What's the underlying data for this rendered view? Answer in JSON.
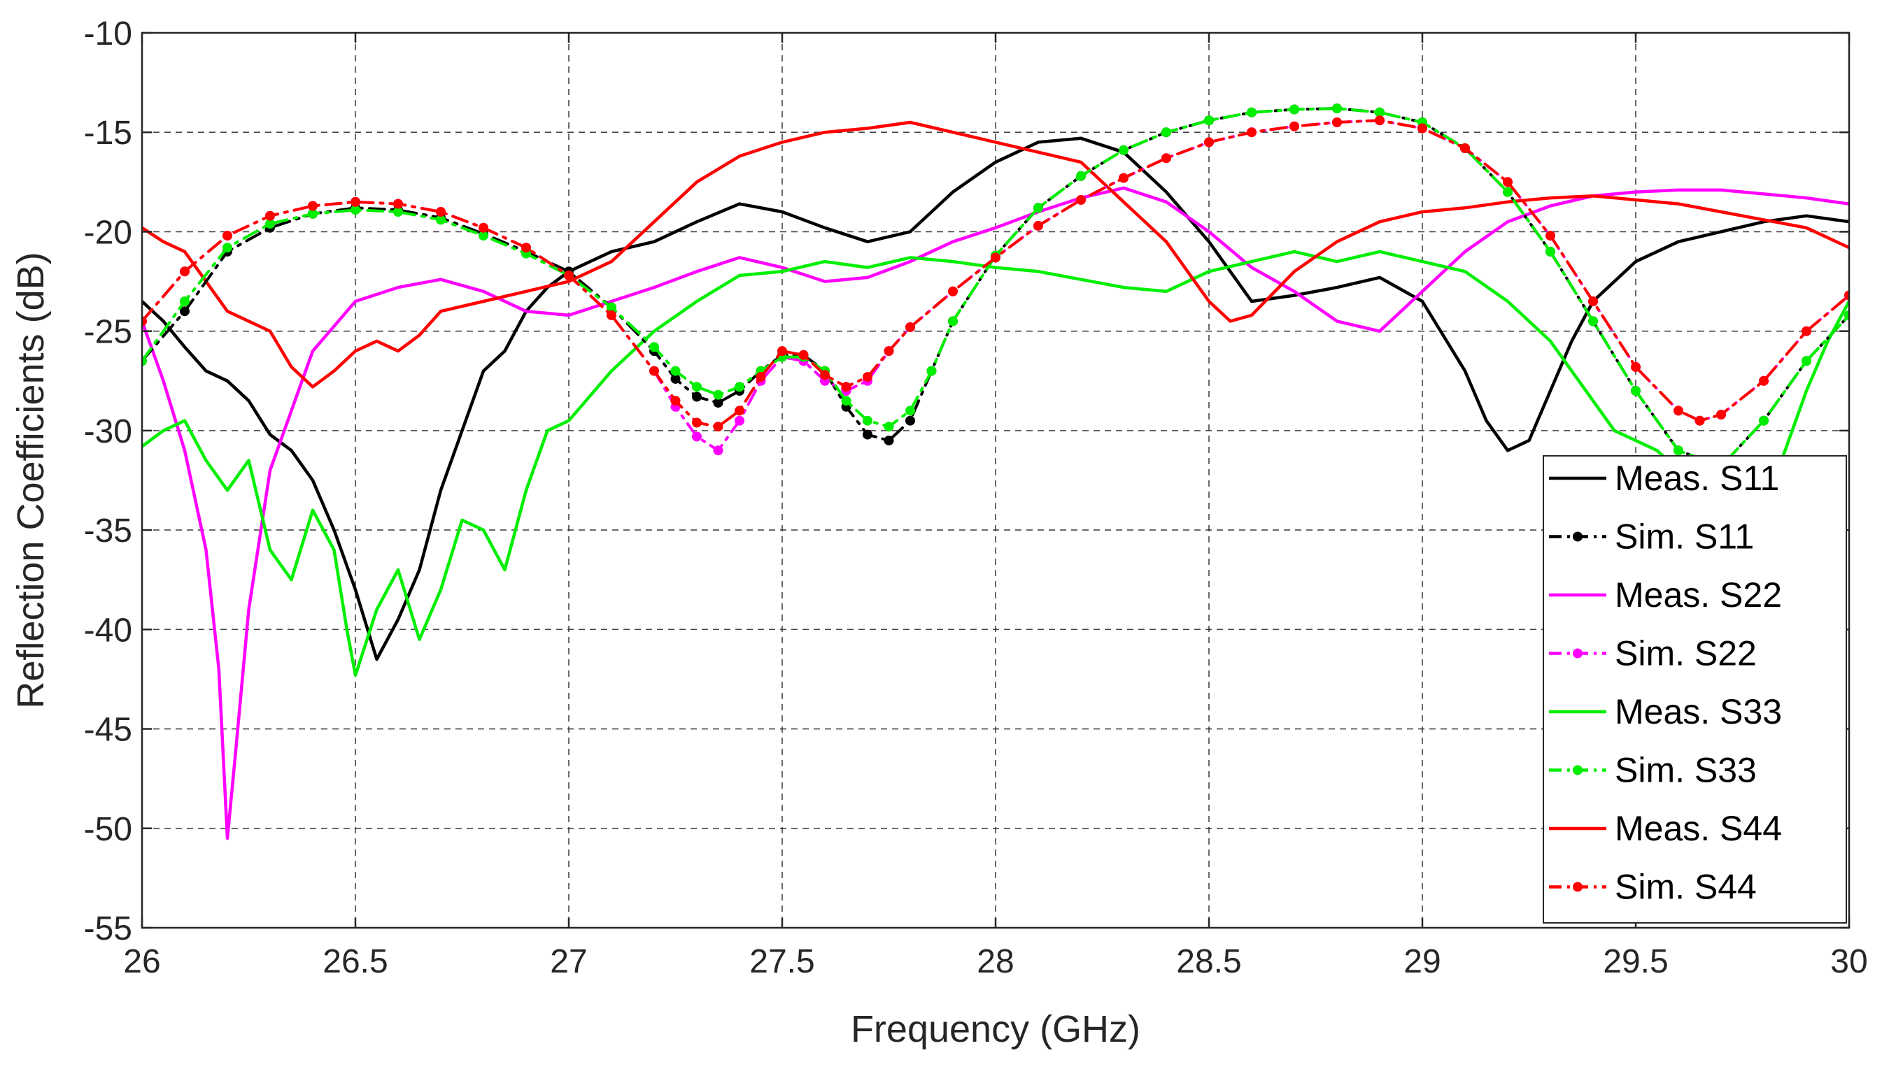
{
  "chart_data": {
    "type": "line",
    "title": "",
    "xlabel": "Frequency (GHz)",
    "ylabel": "Reflection Coefficients (dB)",
    "xlim": [
      26,
      30
    ],
    "ylim": [
      -55,
      -10
    ],
    "xticks": [
      26,
      26.5,
      27,
      27.5,
      28,
      28.5,
      29,
      29.5,
      30
    ],
    "xtick_labels": [
      "26",
      "26.5",
      "27",
      "27.5",
      "28",
      "28.5",
      "29",
      "29.5",
      "30"
    ],
    "yticks": [
      -55,
      -50,
      -45,
      -40,
      -35,
      -30,
      -25,
      -20,
      -15,
      -10
    ],
    "ytick_labels": [
      "-55",
      "-50",
      "-45",
      "-40",
      "-35",
      "-30",
      "-25",
      "-20",
      "-15",
      "-10"
    ],
    "grid": true,
    "legend_position": "bottom-right",
    "series": [
      {
        "name": "Meas. S11",
        "color": "#000000",
        "style": "solid",
        "markers": false,
        "x": [
          26,
          26.05,
          26.1,
          26.15,
          26.2,
          26.25,
          26.3,
          26.35,
          26.4,
          26.45,
          26.5,
          26.55,
          26.6,
          26.65,
          26.7,
          26.75,
          26.8,
          26.85,
          26.9,
          26.95,
          27,
          27.1,
          27.2,
          27.3,
          27.4,
          27.5,
          27.6,
          27.7,
          27.8,
          27.9,
          28,
          28.1,
          28.2,
          28.3,
          28.4,
          28.5,
          28.6,
          28.7,
          28.8,
          28.9,
          29,
          29.1,
          29.15,
          29.2,
          29.25,
          29.3,
          29.35,
          29.4,
          29.5,
          29.6,
          29.7,
          29.8,
          29.9,
          30
        ],
        "y": [
          -23.5,
          -24.5,
          -25.8,
          -27,
          -27.5,
          -28.5,
          -30.2,
          -31,
          -32.5,
          -35,
          -38,
          -41.5,
          -39.5,
          -37,
          -33,
          -30,
          -27,
          -26,
          -24,
          -22.8,
          -22,
          -21,
          -20.5,
          -19.5,
          -18.6,
          -19,
          -19.8,
          -20.5,
          -20,
          -18,
          -16.5,
          -15.5,
          -15.3,
          -16,
          -18,
          -20.5,
          -23.5,
          -23.2,
          -22.8,
          -22.3,
          -23.5,
          -27,
          -29.5,
          -31,
          -30.5,
          -28,
          -25.5,
          -23.5,
          -21.5,
          -20.5,
          -20,
          -19.5,
          -19.2,
          -19.5
        ]
      },
      {
        "name": "Sim. S11",
        "color": "#000000",
        "style": "dash-dot",
        "markers": true,
        "x": [
          26,
          26.1,
          26.2,
          26.3,
          26.4,
          26.5,
          26.6,
          26.7,
          26.8,
          26.9,
          27,
          27.1,
          27.2,
          27.25,
          27.3,
          27.35,
          27.4,
          27.45,
          27.5,
          27.55,
          27.6,
          27.65,
          27.7,
          27.75,
          27.8,
          27.85,
          27.9,
          28,
          28.1,
          28.2,
          28.3,
          28.4,
          28.5,
          28.6,
          28.7,
          28.8,
          28.9,
          29,
          29.1,
          29.2,
          29.3,
          29.4,
          29.5,
          29.6,
          29.7,
          29.8,
          29.9,
          30
        ],
        "y": [
          -26.5,
          -24,
          -21,
          -19.8,
          -19.1,
          -18.8,
          -18.9,
          -19.3,
          -20.1,
          -21,
          -22,
          -23.8,
          -26,
          -27.4,
          -28.3,
          -28.6,
          -28,
          -27,
          -26.2,
          -26.2,
          -27,
          -28.8,
          -30.2,
          -30.5,
          -29.5,
          -27,
          -24.5,
          -21.2,
          -18.8,
          -17.2,
          -15.9,
          -15,
          -14.4,
          -14,
          -13.85,
          -13.8,
          -14,
          -14.5,
          -15.8,
          -18,
          -21,
          -24.5,
          -28,
          -31,
          -31.8,
          -29.5,
          -26.5,
          -24.2
        ]
      },
      {
        "name": "Meas. S22",
        "color": "#ff00ff",
        "style": "solid",
        "markers": false,
        "x": [
          26,
          26.05,
          26.1,
          26.15,
          26.18,
          26.2,
          26.22,
          26.25,
          26.3,
          26.35,
          26.4,
          26.5,
          26.6,
          26.7,
          26.8,
          26.9,
          27,
          27.1,
          27.2,
          27.3,
          27.4,
          27.5,
          27.6,
          27.7,
          27.8,
          27.9,
          28,
          28.1,
          28.2,
          28.3,
          28.4,
          28.5,
          28.6,
          28.7,
          28.8,
          28.9,
          29,
          29.1,
          29.2,
          29.3,
          29.4,
          29.5,
          29.6,
          29.7,
          29.8,
          29.9,
          30
        ],
        "y": [
          -24.5,
          -27.5,
          -31,
          -36,
          -42,
          -50.5,
          -46,
          -39,
          -32,
          -29,
          -26,
          -23.5,
          -22.8,
          -22.4,
          -23,
          -24,
          -24.2,
          -23.5,
          -22.8,
          -22,
          -21.3,
          -21.8,
          -22.5,
          -22.3,
          -21.5,
          -20.5,
          -19.8,
          -19,
          -18.3,
          -17.8,
          -18.5,
          -20,
          -21.8,
          -23,
          -24.5,
          -25,
          -23,
          -21,
          -19.5,
          -18.7,
          -18.2,
          -18,
          -17.9,
          -17.9,
          -18.1,
          -18.3,
          -18.6
        ]
      },
      {
        "name": "Sim. S22",
        "color": "#ff00ff",
        "style": "dash-dot",
        "markers": true,
        "x": [
          26,
          26.1,
          26.2,
          26.3,
          26.4,
          26.5,
          26.6,
          26.7,
          26.8,
          26.9,
          27,
          27.1,
          27.2,
          27.25,
          27.3,
          27.35,
          27.4,
          27.45,
          27.5,
          27.55,
          27.6,
          27.65,
          27.7,
          27.75,
          27.8,
          27.9,
          28,
          28.1,
          28.2,
          28.3,
          28.4,
          28.5,
          28.6,
          28.7,
          28.8,
          28.9,
          29,
          29.1,
          29.2,
          29.3,
          29.4,
          29.5,
          29.6,
          29.65,
          29.7,
          29.8,
          29.9,
          30
        ],
        "y": [
          -24.5,
          -22,
          -20.2,
          -19.2,
          -18.7,
          -18.5,
          -18.6,
          -19,
          -19.8,
          -20.8,
          -22.2,
          -24.2,
          -27,
          -28.8,
          -30.3,
          -31,
          -29.5,
          -27.5,
          -26.3,
          -26.5,
          -27.5,
          -28,
          -27.5,
          -26,
          -24.8,
          -23,
          -21.3,
          -19.7,
          -18.4,
          -17.3,
          -16.3,
          -15.5,
          -15,
          -14.7,
          -14.5,
          -14.4,
          -14.8,
          -15.8,
          -17.5,
          -20.2,
          -23.5,
          -26.8,
          -29,
          -29.5,
          -29.2,
          -27.5,
          -25,
          -23.2
        ]
      },
      {
        "name": "Meas. S33",
        "color": "#00ee00",
        "style": "solid",
        "markers": false,
        "x": [
          26,
          26.05,
          26.1,
          26.15,
          26.2,
          26.25,
          26.3,
          26.35,
          26.4,
          26.45,
          26.48,
          26.5,
          26.55,
          26.6,
          26.65,
          26.7,
          26.75,
          26.8,
          26.85,
          26.9,
          26.95,
          27,
          27.1,
          27.2,
          27.3,
          27.4,
          27.5,
          27.6,
          27.7,
          27.8,
          27.9,
          28,
          28.1,
          28.2,
          28.3,
          28.4,
          28.5,
          28.6,
          28.7,
          28.8,
          28.9,
          29,
          29.1,
          29.2,
          29.3,
          29.35,
          29.4,
          29.45,
          29.5,
          29.55,
          29.6,
          29.65,
          29.7,
          29.75,
          29.8,
          29.85,
          29.9,
          29.95,
          30
        ],
        "y": [
          -30.8,
          -30,
          -29.5,
          -31.5,
          -33,
          -31.5,
          -36,
          -37.5,
          -34,
          -36,
          -40,
          -42.3,
          -39,
          -37,
          -40.5,
          -38,
          -34.5,
          -35,
          -37,
          -33,
          -30,
          -29.5,
          -27,
          -25,
          -23.5,
          -22.2,
          -22,
          -21.5,
          -21.8,
          -21.3,
          -21.5,
          -21.8,
          -22,
          -22.4,
          -22.8,
          -23,
          -22,
          -21.5,
          -21,
          -21.5,
          -21,
          -21.5,
          -22,
          -23.5,
          -25.5,
          -27,
          -28.5,
          -30,
          -30.5,
          -31,
          -32,
          -33,
          -34,
          -35,
          -34,
          -31,
          -28,
          -25.5,
          -23.5
        ]
      },
      {
        "name": "Sim. S33",
        "color": "#00ee00",
        "style": "dash-dot",
        "markers": true,
        "x": [
          26,
          26.1,
          26.2,
          26.3,
          26.4,
          26.5,
          26.6,
          26.7,
          26.8,
          26.9,
          27,
          27.1,
          27.2,
          27.25,
          27.3,
          27.35,
          27.4,
          27.45,
          27.5,
          27.55,
          27.6,
          27.65,
          27.7,
          27.75,
          27.8,
          27.85,
          27.9,
          28,
          28.1,
          28.2,
          28.3,
          28.4,
          28.5,
          28.6,
          28.7,
          28.8,
          28.9,
          29,
          29.1,
          29.2,
          29.3,
          29.4,
          29.5,
          29.6,
          29.7,
          29.8,
          29.9,
          30
        ],
        "y": [
          -26.5,
          -23.5,
          -20.8,
          -19.6,
          -19.1,
          -18.9,
          -19,
          -19.4,
          -20.2,
          -21.1,
          -22.2,
          -23.8,
          -25.8,
          -27,
          -27.8,
          -28.2,
          -27.8,
          -27,
          -26.3,
          -26.3,
          -27,
          -28.5,
          -29.5,
          -29.8,
          -29,
          -27,
          -24.5,
          -21.2,
          -18.8,
          -17.2,
          -15.9,
          -15,
          -14.4,
          -14,
          -13.85,
          -13.8,
          -14,
          -14.5,
          -15.8,
          -18,
          -21,
          -24.5,
          -28,
          -31,
          -31.8,
          -29.5,
          -26.5,
          -24.2
        ]
      },
      {
        "name": "Meas. S44",
        "color": "#ff0000",
        "style": "solid",
        "markers": false,
        "x": [
          26,
          26.05,
          26.1,
          26.15,
          26.2,
          26.25,
          26.3,
          26.35,
          26.4,
          26.45,
          26.5,
          26.55,
          26.6,
          26.65,
          26.7,
          26.8,
          26.9,
          27,
          27.1,
          27.2,
          27.3,
          27.4,
          27.5,
          27.6,
          27.7,
          27.8,
          27.9,
          28,
          28.1,
          28.2,
          28.3,
          28.4,
          28.5,
          28.55,
          28.6,
          28.7,
          28.8,
          28.9,
          29,
          29.1,
          29.2,
          29.3,
          29.4,
          29.5,
          29.6,
          29.7,
          29.8,
          29.9,
          30
        ],
        "y": [
          -19.8,
          -20.5,
          -21,
          -22.5,
          -24,
          -24.5,
          -25,
          -26.8,
          -27.8,
          -27,
          -26,
          -25.5,
          -26,
          -25.2,
          -24,
          -23.5,
          -23,
          -22.5,
          -21.5,
          -19.5,
          -17.5,
          -16.2,
          -15.5,
          -15,
          -14.8,
          -14.5,
          -15,
          -15.5,
          -16,
          -16.5,
          -18.5,
          -20.5,
          -23.5,
          -24.5,
          -24.2,
          -22,
          -20.5,
          -19.5,
          -19,
          -18.8,
          -18.5,
          -18.3,
          -18.2,
          -18.4,
          -18.6,
          -19,
          -19.4,
          -19.8,
          -20.8
        ]
      },
      {
        "name": "Sim. S44",
        "color": "#ff0000",
        "style": "dash-dot",
        "markers": true,
        "x": [
          26,
          26.1,
          26.2,
          26.3,
          26.4,
          26.5,
          26.6,
          26.7,
          26.8,
          26.9,
          27,
          27.1,
          27.2,
          27.25,
          27.3,
          27.35,
          27.4,
          27.45,
          27.5,
          27.55,
          27.6,
          27.65,
          27.7,
          27.75,
          27.8,
          27.9,
          28,
          28.1,
          28.2,
          28.3,
          28.4,
          28.5,
          28.6,
          28.7,
          28.8,
          28.9,
          29,
          29.1,
          29.2,
          29.3,
          29.4,
          29.5,
          29.6,
          29.65,
          29.7,
          29.8,
          29.9,
          30
        ],
        "y": [
          -24.5,
          -22,
          -20.2,
          -19.2,
          -18.7,
          -18.5,
          -18.6,
          -19,
          -19.8,
          -20.8,
          -22.2,
          -24.2,
          -27,
          -28.5,
          -29.6,
          -29.8,
          -29,
          -27.3,
          -26,
          -26.2,
          -27.2,
          -27.8,
          -27.3,
          -26,
          -24.8,
          -23,
          -21.3,
          -19.7,
          -18.4,
          -17.3,
          -16.3,
          -15.5,
          -15,
          -14.7,
          -14.5,
          -14.4,
          -14.8,
          -15.8,
          -17.5,
          -20.2,
          -23.5,
          -26.8,
          -29,
          -29.5,
          -29.2,
          -27.5,
          -25,
          -23.2
        ]
      }
    ]
  }
}
